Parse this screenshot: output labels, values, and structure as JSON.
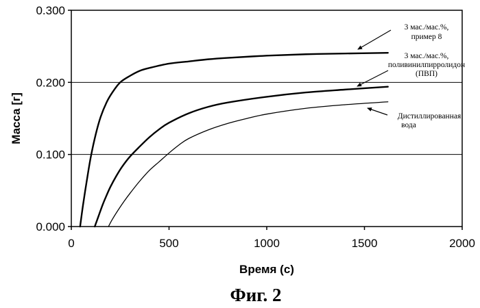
{
  "chart_data": {
    "type": "line",
    "title": "",
    "xlabel": "Время (с)",
    "ylabel": "Масса [г]",
    "xlim": [
      0,
      2000
    ],
    "ylim": [
      0,
      0.3
    ],
    "x_ticks": [
      "0",
      "500",
      "1000",
      "1500",
      "2000"
    ],
    "y_ticks": [
      "0.000",
      "0.100",
      "0.200",
      "0.300"
    ],
    "x_tick_values": [
      0,
      500,
      1000,
      1500,
      2000
    ],
    "y_tick_values": [
      0,
      0.1,
      0.2,
      0.3
    ],
    "grid": "horizontal",
    "caption": "Фиг. 2",
    "series": [
      {
        "name": "3 мас./мас.%, пример 8",
        "label_lines": [
          "3 мас./мас.%,",
          "пример 8"
        ],
        "color": "#000000",
        "x": [
          45,
          60,
          80,
          100,
          125,
          150,
          180,
          210,
          250,
          300,
          350,
          400,
          500,
          600,
          700,
          800,
          1000,
          1200,
          1400,
          1620
        ],
        "y": [
          0.0,
          0.03,
          0.065,
          0.097,
          0.128,
          0.152,
          0.172,
          0.186,
          0.2,
          0.209,
          0.216,
          0.22,
          0.226,
          0.229,
          0.232,
          0.234,
          0.237,
          0.239,
          0.24,
          0.241
        ]
      },
      {
        "name": "3 мас./мас.%, поливинилпирролидон (ПВП)",
        "label_lines": [
          "3 мас./мас.%,",
          "поливинилпирролидон",
          "(ПВП)"
        ],
        "color": "#000000",
        "x": [
          120,
          140,
          160,
          180,
          200,
          230,
          260,
          300,
          350,
          400,
          450,
          500,
          600,
          700,
          800,
          1000,
          1200,
          1400,
          1620
        ],
        "y": [
          0.0,
          0.015,
          0.03,
          0.043,
          0.055,
          0.07,
          0.083,
          0.097,
          0.111,
          0.124,
          0.135,
          0.144,
          0.157,
          0.166,
          0.172,
          0.18,
          0.186,
          0.19,
          0.194
        ]
      },
      {
        "name": "Дистиллированная вода",
        "label_lines": [
          "Дистиллированная",
          "вода"
        ],
        "color": "#000000",
        "x": [
          190,
          210,
          240,
          270,
          300,
          350,
          400,
          450,
          500,
          550,
          600,
          700,
          800,
          900,
          1000,
          1200,
          1400,
          1620
        ],
        "y": [
          0.0,
          0.01,
          0.023,
          0.035,
          0.046,
          0.063,
          0.078,
          0.09,
          0.102,
          0.113,
          0.122,
          0.134,
          0.143,
          0.15,
          0.156,
          0.164,
          0.169,
          0.173
        ]
      }
    ]
  }
}
